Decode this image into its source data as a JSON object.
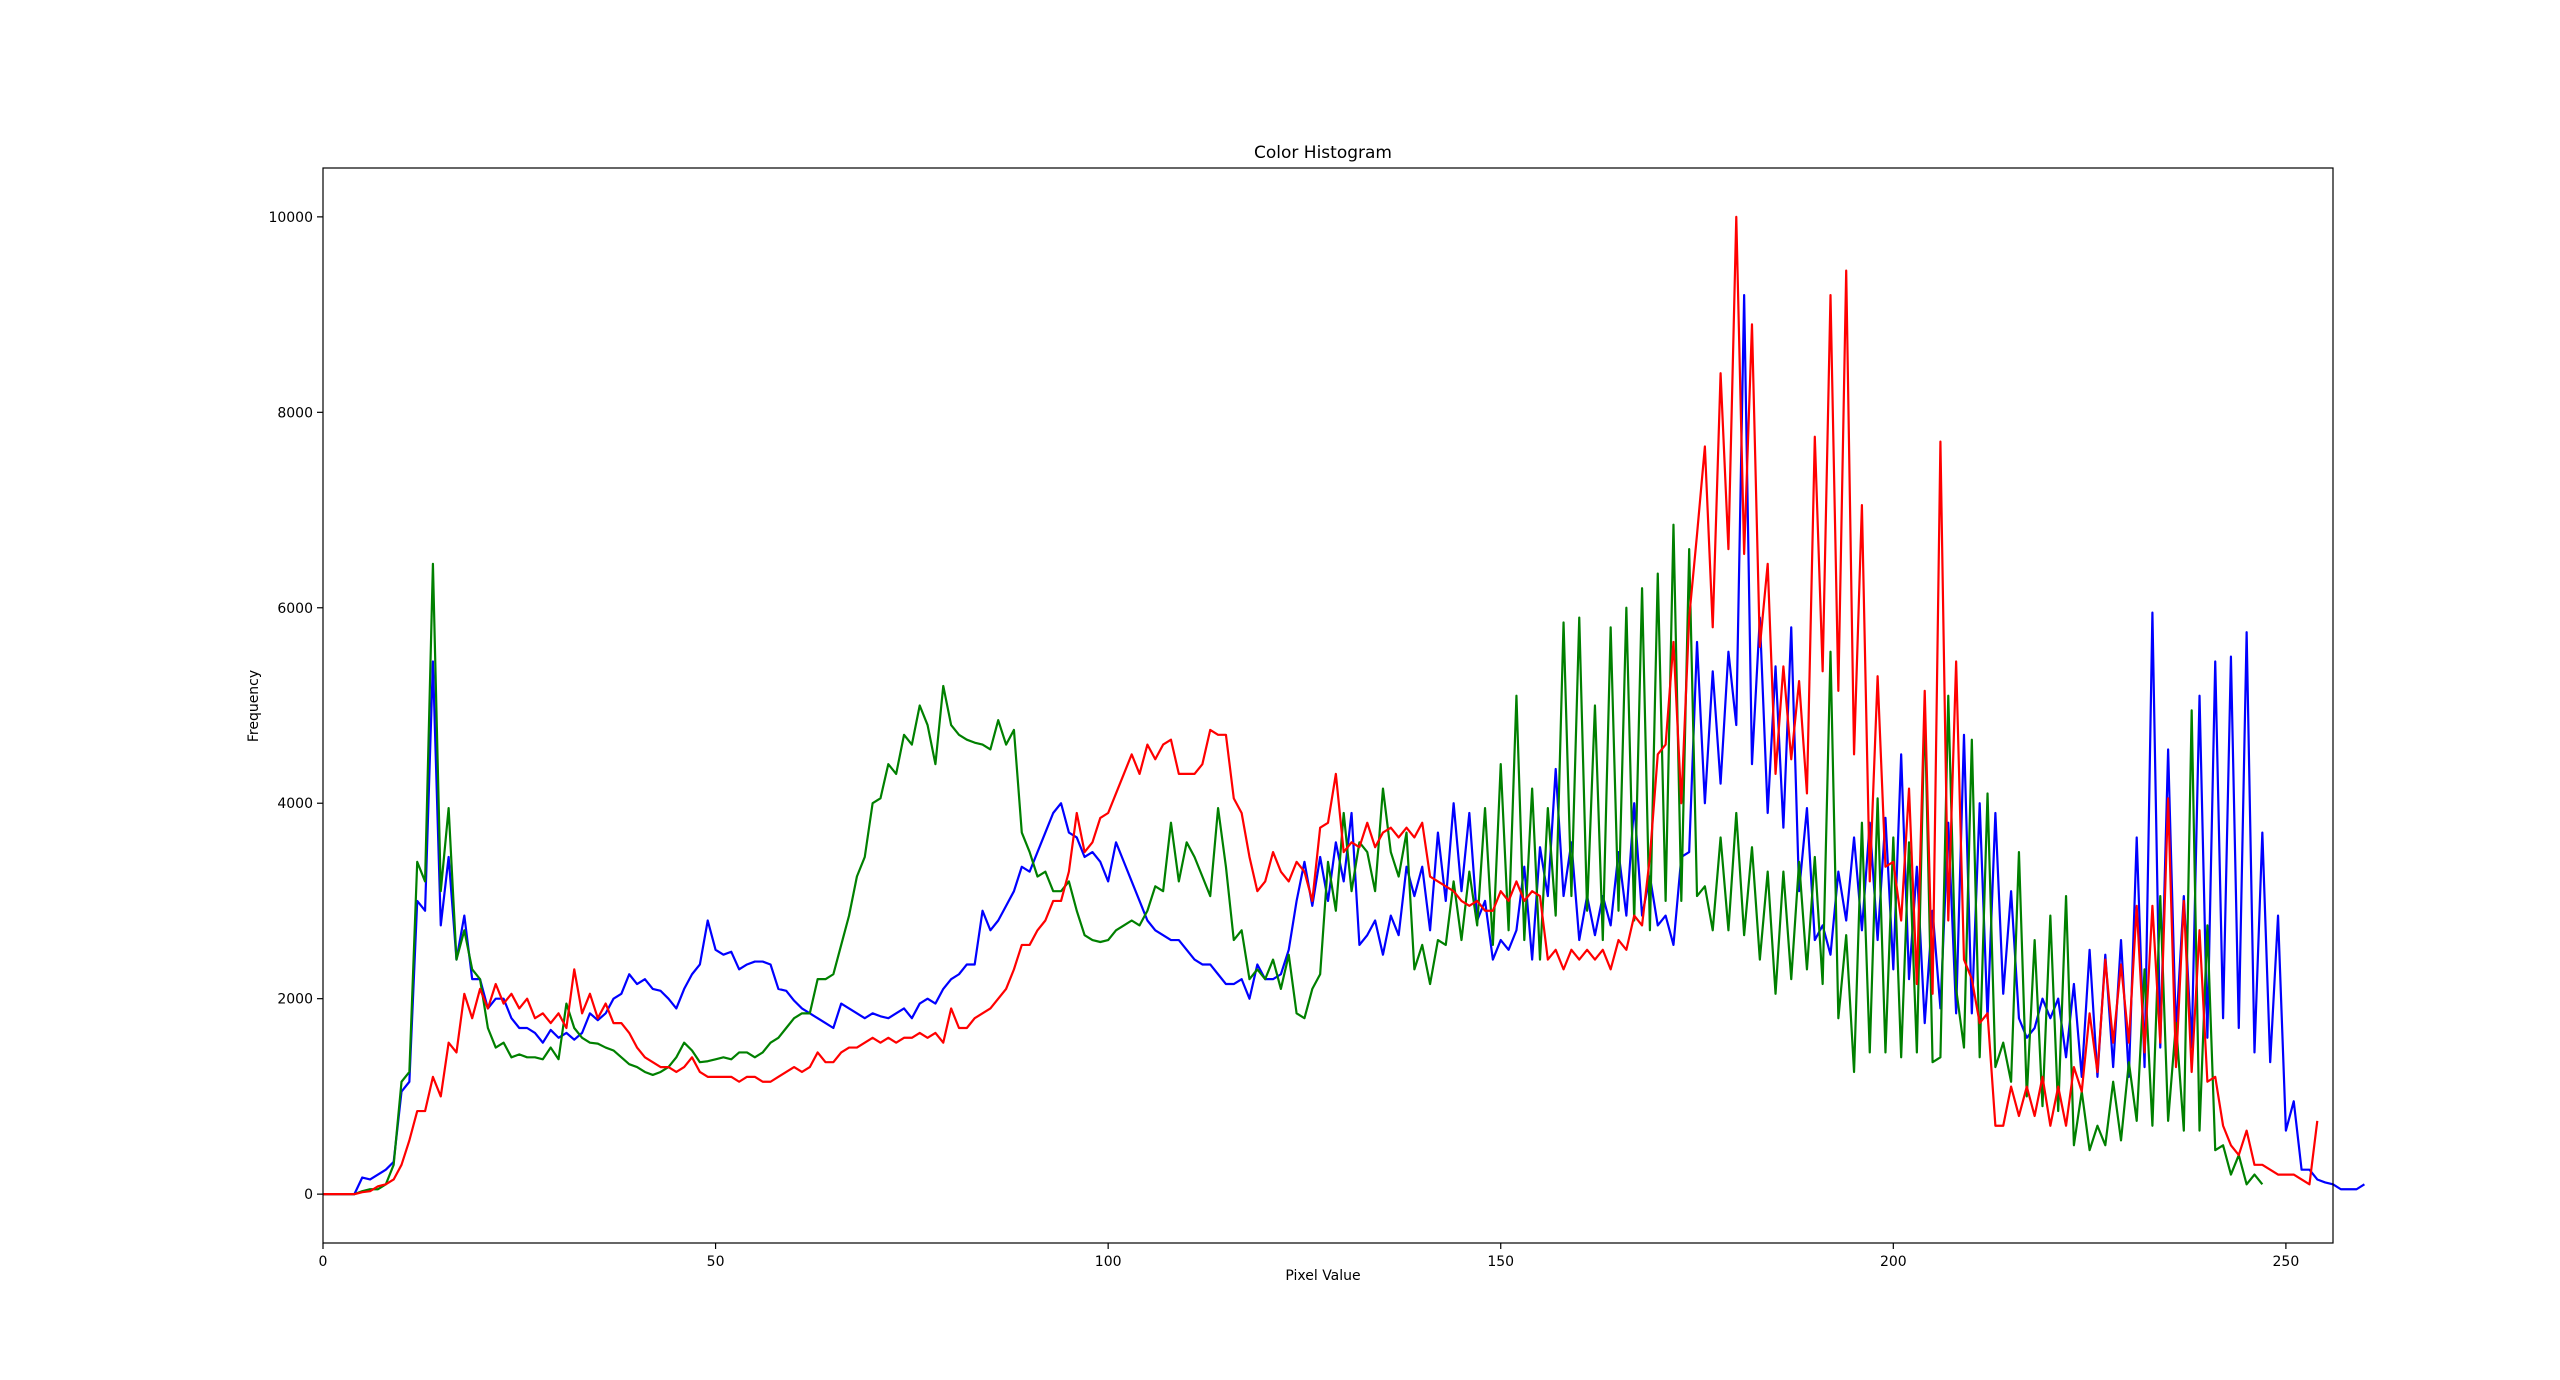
{
  "chart_data": {
    "type": "line",
    "title": "Color Histogram",
    "xlabel": "Pixel Value",
    "ylabel": "Frequency",
    "xlim": [
      0,
      256
    ],
    "ylim": [
      -500,
      10500
    ],
    "xticks": [
      0,
      50,
      100,
      150,
      200,
      250
    ],
    "yticks": [
      0,
      2000,
      4000,
      6000,
      8000,
      10000
    ],
    "grid": false,
    "legend": "none",
    "colors": {
      "blue": "#0000ff",
      "green": "#008000",
      "red": "#ff0000"
    },
    "series": [
      {
        "color": "#0000ff",
        "values": [
          0,
          0,
          0,
          0,
          0,
          170,
          150,
          200,
          250,
          330,
          1050,
          1150,
          3000,
          2900,
          5450,
          2750,
          3450,
          2400,
          2850,
          2200,
          2200,
          1900,
          2000,
          2000,
          1800,
          1700,
          1700,
          1650,
          1550,
          1680,
          1600,
          1650,
          1580,
          1650,
          1850,
          1780,
          1850,
          2000,
          2050,
          2250,
          2150,
          2200,
          2100,
          2080,
          2000,
          1900,
          2100,
          2250,
          2350,
          2800,
          2500,
          2450,
          2480,
          2300,
          2350,
          2380,
          2380,
          2350,
          2100,
          2080,
          1980,
          1900,
          1850,
          1800,
          1750,
          1700,
          1950,
          1900,
          1850,
          1800,
          1850,
          1820,
          1800,
          1850,
          1900,
          1800,
          1950,
          2000,
          1950,
          2100,
          2200,
          2250,
          2350,
          2350,
          2900,
          2700,
          2800,
          2950,
          3100,
          3350,
          3300,
          3500,
          3700,
          3900,
          4000,
          3700,
          3650,
          3450,
          3500,
          3400,
          3200,
          3600,
          3400,
          3200,
          3000,
          2800,
          2700,
          2650,
          2600,
          2600,
          2500,
          2400,
          2350,
          2350,
          2250,
          2150,
          2150,
          2200,
          2000,
          2350,
          2200,
          2200,
          2250,
          2500,
          3000,
          3400,
          2950,
          3450,
          3000,
          3600,
          3200,
          3900,
          2550,
          2650,
          2800,
          2450,
          2850,
          2650,
          3350,
          3050,
          3350,
          2700,
          3700,
          3000,
          4000,
          3100,
          3900,
          2800,
          3000,
          2400,
          2600,
          2500,
          2700,
          3350,
          2400,
          3550,
          3050,
          4350,
          3050,
          3600,
          2600,
          3050,
          2650,
          3050,
          2750,
          3500,
          2850,
          4000,
          2850,
          3250,
          2750,
          2850,
          2550,
          3450,
          3500,
          5650,
          4000,
          5350,
          4200,
          5550,
          4800,
          9200,
          4400,
          5900,
          3900,
          5400,
          3750,
          5800,
          3100,
          3950,
          2600,
          2750,
          2450,
          3300,
          2800,
          3650,
          2700,
          3800,
          2600,
          3850,
          2300,
          4500,
          2200,
          3350,
          1750,
          2900,
          1900,
          3800,
          1850,
          4700,
          1850,
          4000,
          1800,
          3900,
          2050,
          3100,
          1800,
          1600,
          1700,
          2000,
          1800,
          2000,
          1400,
          2150,
          1200,
          2500,
          1200,
          2450,
          1300,
          2600,
          1200,
          3650,
          1300,
          5950,
          1500,
          4550,
          1650,
          3050,
          1500,
          5100,
          1600,
          5450,
          1800,
          5500,
          1700,
          5750,
          1450,
          3700,
          1350,
          2850,
          650,
          950,
          250,
          250,
          150,
          120,
          100,
          50,
          50,
          50,
          100
        ]
      },
      {
        "color": "#008000",
        "values": [
          0,
          0,
          0,
          0,
          0,
          30,
          50,
          50,
          100,
          300,
          1150,
          1250,
          3400,
          3200,
          6450,
          3100,
          3950,
          2400,
          2700,
          2300,
          2200,
          1700,
          1500,
          1550,
          1400,
          1430,
          1400,
          1400,
          1380,
          1500,
          1380,
          1950,
          1700,
          1600,
          1550,
          1540,
          1500,
          1470,
          1400,
          1330,
          1300,
          1250,
          1220,
          1250,
          1300,
          1400,
          1550,
          1470,
          1350,
          1360,
          1380,
          1400,
          1380,
          1450,
          1450,
          1400,
          1450,
          1550,
          1600,
          1700,
          1800,
          1850,
          1850,
          2200,
          2200,
          2250,
          2550,
          2850,
          3250,
          3450,
          4000,
          4050,
          4400,
          4300,
          4700,
          4600,
          5000,
          4800,
          4400,
          5200,
          4800,
          4700,
          4650,
          4620,
          4600,
          4550,
          4850,
          4600,
          4750,
          3700,
          3500,
          3250,
          3300,
          3100,
          3100,
          3200,
          2900,
          2650,
          2600,
          2580,
          2600,
          2700,
          2750,
          2800,
          2750,
          2900,
          3150,
          3100,
          3800,
          3200,
          3600,
          3450,
          3250,
          3050,
          3950,
          3350,
          2600,
          2700,
          2200,
          2300,
          2200,
          2400,
          2100,
          2450,
          1850,
          1800,
          2100,
          2250,
          3400,
          2900,
          3900,
          3100,
          3600,
          3500,
          3100,
          4150,
          3500,
          3250,
          3700,
          2300,
          2550,
          2150,
          2600,
          2550,
          3200,
          2600,
          3300,
          2750,
          3950,
          2550,
          4400,
          2700,
          5100,
          2600,
          4150,
          2400,
          3950,
          2850,
          5850,
          3050,
          5900,
          2900,
          5000,
          2600,
          5800,
          2900,
          6000,
          2800,
          6200,
          2700,
          6350,
          3000,
          6850,
          3000,
          6600,
          3050,
          3150,
          2700,
          3650,
          2700,
          3900,
          2650,
          3550,
          2400,
          3300,
          2050,
          3300,
          2200,
          3400,
          2300,
          3450,
          2150,
          5550,
          1800,
          2650,
          1250,
          3800,
          1450,
          4050,
          1450,
          3650,
          1400,
          3600,
          1450,
          5000,
          1350,
          1400,
          5100,
          2100,
          1500,
          4650,
          1400,
          4100,
          1300,
          1550,
          1150,
          3500,
          1000,
          2600,
          900,
          2850,
          850,
          3050,
          500,
          1050,
          450,
          700,
          500,
          1150,
          550,
          1350,
          750,
          2300,
          700,
          3050,
          750,
          1750,
          650,
          4950,
          650,
          2750,
          450,
          500,
          200,
          400,
          100,
          200,
          100
        ]
      },
      {
        "color": "#ff0000",
        "values": [
          0,
          0,
          0,
          0,
          0,
          20,
          30,
          80,
          100,
          150,
          300,
          550,
          850,
          850,
          1200,
          1000,
          1550,
          1450,
          2050,
          1800,
          2100,
          1900,
          2150,
          1950,
          2050,
          1900,
          2000,
          1800,
          1850,
          1750,
          1850,
          1700,
          2300,
          1850,
          2050,
          1800,
          1950,
          1750,
          1750,
          1650,
          1500,
          1400,
          1350,
          1300,
          1300,
          1250,
          1300,
          1400,
          1250,
          1200,
          1200,
          1200,
          1200,
          1150,
          1200,
          1200,
          1150,
          1150,
          1200,
          1250,
          1300,
          1250,
          1300,
          1450,
          1350,
          1350,
          1450,
          1500,
          1500,
          1550,
          1600,
          1550,
          1600,
          1550,
          1600,
          1600,
          1650,
          1600,
          1650,
          1550,
          1900,
          1700,
          1700,
          1800,
          1850,
          1900,
          2000,
          2100,
          2300,
          2550,
          2550,
          2700,
          2800,
          3000,
          3000,
          3300,
          3900,
          3500,
          3600,
          3850,
          3900,
          4100,
          4300,
          4500,
          4300,
          4600,
          4450,
          4600,
          4650,
          4300,
          4300,
          4300,
          4400,
          4750,
          4700,
          4700,
          4050,
          3900,
          3450,
          3100,
          3200,
          3500,
          3300,
          3200,
          3400,
          3300,
          3000,
          3750,
          3800,
          4300,
          3500,
          3600,
          3550,
          3800,
          3550,
          3700,
          3750,
          3650,
          3750,
          3650,
          3800,
          3250,
          3200,
          3150,
          3100,
          3000,
          2950,
          3000,
          2900,
          2900,
          3100,
          3000,
          3200,
          3000,
          3100,
          3050,
          2400,
          2500,
          2300,
          2500,
          2400,
          2500,
          2400,
          2500,
          2300,
          2600,
          2500,
          2850,
          2750,
          3450,
          4500,
          4600,
          5650,
          4000,
          5900,
          6750,
          7650,
          5800,
          8400,
          6600,
          10000,
          6550,
          8900,
          5600,
          6450,
          4300,
          5400,
          4450,
          5250,
          4100,
          7750,
          5350,
          9200,
          5150,
          9450,
          4500,
          7050,
          3200,
          5300,
          3350,
          3400,
          2800,
          4150,
          2150,
          5150,
          2050,
          7700,
          2800,
          5450,
          2400,
          2200,
          1750,
          1850,
          700,
          700,
          1100,
          800,
          1100,
          800,
          1200,
          700,
          1100,
          700,
          1300,
          1050,
          1850,
          1250,
          2400,
          1550,
          2350,
          1550,
          2950,
          1450,
          2950,
          1550,
          4050,
          1300,
          3000,
          1250,
          2700,
          1150,
          1200,
          700,
          500,
          400,
          650,
          300,
          300,
          250,
          200,
          200,
          200,
          150,
          100,
          750
        ]
      }
    ]
  }
}
